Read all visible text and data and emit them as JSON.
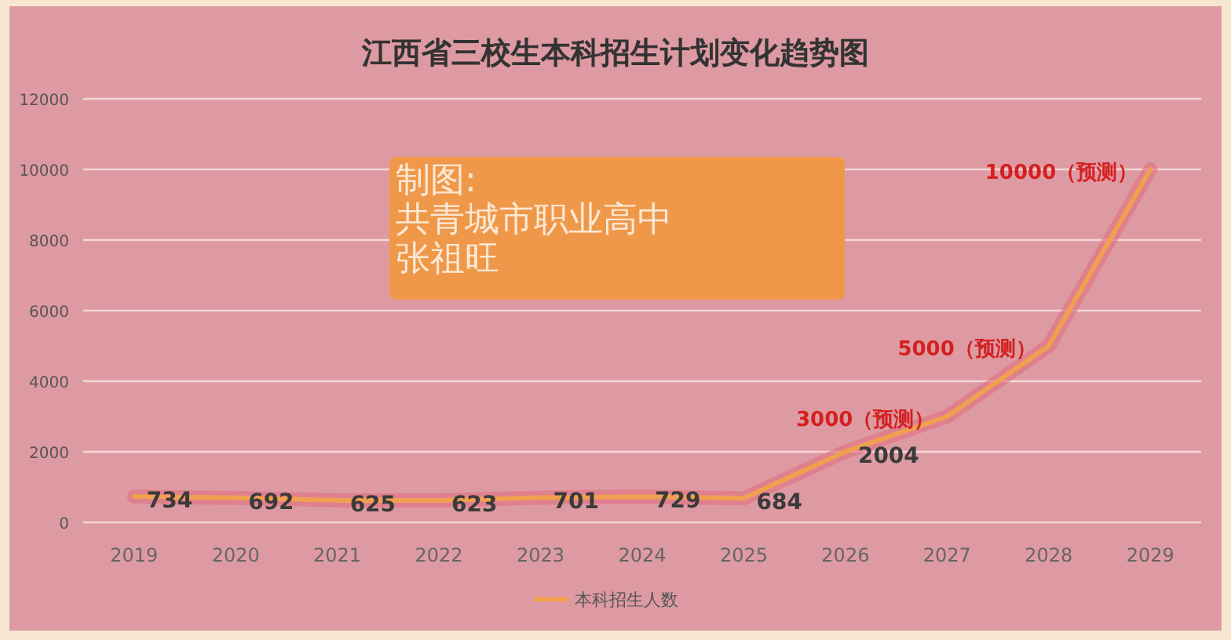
{
  "chart_data": {
    "type": "line",
    "title": "江西省三校生本科招生计划变化趋势图",
    "categories": [
      "2019",
      "2020",
      "2021",
      "2022",
      "2023",
      "2024",
      "2025",
      "2026",
      "2027",
      "2028",
      "2029"
    ],
    "series": [
      {
        "name": "本科招生人数",
        "color": "#f0a050",
        "values": [
          734,
          692,
          625,
          623,
          701,
          729,
          684,
          2004,
          3000,
          5000,
          10000
        ],
        "value_labels": [
          "734",
          "692",
          "625",
          "623",
          "701",
          "729",
          "684",
          "2004",
          "3000（预测）",
          "5000（预测）",
          "10000（预测）"
        ]
      }
    ],
    "ylim": [
      0,
      12000
    ],
    "yticks": [
      0,
      2000,
      4000,
      6000,
      8000,
      10000,
      12000
    ],
    "grid": "y",
    "legend": "bottom",
    "marker": "none",
    "line_style": "solid",
    "annotations": [
      "制图:",
      "共青城市职业高中",
      "张祖旺"
    ]
  }
}
